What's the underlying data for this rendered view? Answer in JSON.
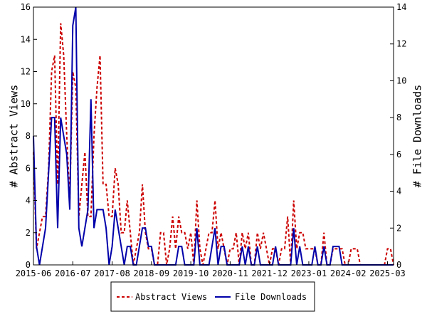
{
  "chart_data": {
    "type": "line",
    "title": "",
    "xlabel": "",
    "ylabel_left": "# Abstract Views",
    "ylabel_right": "# File Downloads",
    "ylim_left": [
      0,
      16
    ],
    "ylim_right": [
      0,
      14
    ],
    "yticks_left": [
      "0",
      "2",
      "4",
      "6",
      "8",
      "10",
      "12",
      "14",
      "16"
    ],
    "yticks_right": [
      "0",
      "2",
      "4",
      "6",
      "8",
      "10",
      "12",
      "14"
    ],
    "x_range": [
      "2015-06",
      "2025-05"
    ],
    "x_tick_labels": [
      "2015-06",
      "2016-07",
      "2017-08",
      "2018-09",
      "2019-10",
      "2020-11",
      "2021-12",
      "2023-01",
      "2024-02",
      "2025-03"
    ],
    "grid": false,
    "legend_position": "bottom-center",
    "series": [
      {
        "name": "Abstract Views",
        "axis": "left",
        "color": "#cc0000",
        "style": "dashed",
        "points": [
          [
            "2015-06",
            7
          ],
          [
            "2015-07",
            1
          ],
          [
            "2015-08",
            2
          ],
          [
            "2015-09",
            3
          ],
          [
            "2015-10",
            3
          ],
          [
            "2015-11",
            6
          ],
          [
            "2015-12",
            12
          ],
          [
            "2016-01",
            13
          ],
          [
            "2016-02",
            5
          ],
          [
            "2016-03",
            15
          ],
          [
            "2016-04",
            13
          ],
          [
            "2016-05",
            8
          ],
          [
            "2016-06",
            4
          ],
          [
            "2016-07",
            12
          ],
          [
            "2016-08",
            11
          ],
          [
            "2016-09",
            3
          ],
          [
            "2016-10",
            5
          ],
          [
            "2016-11",
            7
          ],
          [
            "2016-12",
            3
          ],
          [
            "2017-01",
            3
          ],
          [
            "2017-02",
            8
          ],
          [
            "2017-03",
            11
          ],
          [
            "2017-04",
            13
          ],
          [
            "2017-05",
            5
          ],
          [
            "2017-06",
            5
          ],
          [
            "2017-07",
            3
          ],
          [
            "2017-08",
            3
          ],
          [
            "2017-09",
            6
          ],
          [
            "2017-10",
            5
          ],
          [
            "2017-11",
            2
          ],
          [
            "2017-12",
            2
          ],
          [
            "2018-01",
            4
          ],
          [
            "2018-02",
            2
          ],
          [
            "2018-03",
            0
          ],
          [
            "2018-04",
            1
          ],
          [
            "2018-05",
            2
          ],
          [
            "2018-06",
            5
          ],
          [
            "2018-07",
            2
          ],
          [
            "2018-08",
            1
          ],
          [
            "2018-09",
            1
          ],
          [
            "2018-10",
            0
          ],
          [
            "2018-11",
            0
          ],
          [
            "2018-12",
            2
          ],
          [
            "2019-01",
            2
          ],
          [
            "2019-02",
            0
          ],
          [
            "2019-03",
            1
          ],
          [
            "2019-04",
            3
          ],
          [
            "2019-05",
            1
          ],
          [
            "2019-06",
            3
          ],
          [
            "2019-07",
            2
          ],
          [
            "2019-08",
            2
          ],
          [
            "2019-09",
            1
          ],
          [
            "2019-10",
            2
          ],
          [
            "2019-11",
            0
          ],
          [
            "2019-12",
            4
          ],
          [
            "2020-01",
            1
          ],
          [
            "2020-02",
            0
          ],
          [
            "2020-03",
            1
          ],
          [
            "2020-04",
            2
          ],
          [
            "2020-05",
            2
          ],
          [
            "2020-06",
            4
          ],
          [
            "2020-07",
            1
          ],
          [
            "2020-08",
            2
          ],
          [
            "2020-09",
            1
          ],
          [
            "2020-10",
            0
          ],
          [
            "2020-11",
            1
          ],
          [
            "2020-12",
            1
          ],
          [
            "2021-01",
            2
          ],
          [
            "2021-02",
            0
          ],
          [
            "2021-03",
            2
          ],
          [
            "2021-04",
            1
          ],
          [
            "2021-05",
            2
          ],
          [
            "2021-06",
            0
          ],
          [
            "2021-07",
            0
          ],
          [
            "2021-08",
            2
          ],
          [
            "2021-09",
            1
          ],
          [
            "2021-10",
            2
          ],
          [
            "2021-11",
            1
          ],
          [
            "2021-12",
            0
          ],
          [
            "2022-01",
            1
          ],
          [
            "2022-02",
            1
          ],
          [
            "2022-03",
            0
          ],
          [
            "2022-04",
            1
          ],
          [
            "2022-05",
            1
          ],
          [
            "2022-06",
            3
          ],
          [
            "2022-07",
            0
          ],
          [
            "2022-08",
            4
          ],
          [
            "2022-09",
            1
          ],
          [
            "2022-10",
            2
          ],
          [
            "2022-11",
            2
          ],
          [
            "2022-12",
            1
          ],
          [
            "2023-01",
            1
          ],
          [
            "2023-02",
            1
          ],
          [
            "2023-03",
            1
          ],
          [
            "2023-04",
            0
          ],
          [
            "2023-05",
            0
          ],
          [
            "2023-06",
            2
          ],
          [
            "2023-07",
            0
          ],
          [
            "2023-08",
            0
          ],
          [
            "2023-09",
            1
          ],
          [
            "2023-10",
            1
          ],
          [
            "2023-11",
            1
          ],
          [
            "2023-12",
            1
          ],
          [
            "2024-01",
            0
          ],
          [
            "2024-02",
            0
          ],
          [
            "2024-03",
            1
          ],
          [
            "2024-04",
            1
          ],
          [
            "2024-05",
            1
          ],
          [
            "2024-06",
            0
          ],
          [
            "2024-07",
            0
          ],
          [
            "2024-08",
            0
          ],
          [
            "2024-09",
            0
          ],
          [
            "2024-10",
            0
          ],
          [
            "2024-11",
            0
          ],
          [
            "2024-12",
            0
          ],
          [
            "2025-01",
            0
          ],
          [
            "2025-02",
            0
          ],
          [
            "2025-03",
            1
          ],
          [
            "2025-04",
            1
          ],
          [
            "2025-05",
            0
          ]
        ]
      },
      {
        "name": "File Downloads",
        "axis": "right",
        "color": "#0000aa",
        "style": "solid",
        "points": [
          [
            "2015-06",
            7
          ],
          [
            "2015-07",
            1
          ],
          [
            "2015-08",
            0
          ],
          [
            "2015-09",
            1
          ],
          [
            "2015-10",
            2
          ],
          [
            "2015-11",
            5
          ],
          [
            "2015-12",
            8
          ],
          [
            "2016-01",
            8
          ],
          [
            "2016-02",
            2
          ],
          [
            "2016-03",
            8
          ],
          [
            "2016-04",
            7
          ],
          [
            "2016-05",
            6
          ],
          [
            "2016-06",
            3
          ],
          [
            "2016-07",
            13
          ],
          [
            "2016-08",
            14
          ],
          [
            "2016-09",
            2
          ],
          [
            "2016-10",
            1
          ],
          [
            "2016-11",
            2
          ],
          [
            "2016-12",
            3
          ],
          [
            "2017-01",
            9
          ],
          [
            "2017-02",
            2
          ],
          [
            "2017-03",
            3
          ],
          [
            "2017-04",
            3
          ],
          [
            "2017-05",
            3
          ],
          [
            "2017-06",
            2
          ],
          [
            "2017-07",
            0
          ],
          [
            "2017-08",
            1
          ],
          [
            "2017-09",
            3
          ],
          [
            "2017-10",
            2
          ],
          [
            "2017-11",
            1
          ],
          [
            "2017-12",
            0
          ],
          [
            "2018-01",
            1
          ],
          [
            "2018-02",
            1
          ],
          [
            "2018-03",
            0
          ],
          [
            "2018-04",
            0
          ],
          [
            "2018-05",
            1
          ],
          [
            "2018-06",
            2
          ],
          [
            "2018-07",
            2
          ],
          [
            "2018-08",
            1
          ],
          [
            "2018-09",
            1
          ],
          [
            "2018-10",
            0
          ],
          [
            "2018-11",
            0
          ],
          [
            "2018-12",
            0
          ],
          [
            "2019-01",
            0
          ],
          [
            "2019-02",
            0
          ],
          [
            "2019-03",
            0
          ],
          [
            "2019-04",
            0
          ],
          [
            "2019-05",
            0
          ],
          [
            "2019-06",
            1
          ],
          [
            "2019-07",
            1
          ],
          [
            "2019-08",
            0
          ],
          [
            "2019-09",
            0
          ],
          [
            "2019-10",
            0
          ],
          [
            "2019-11",
            0
          ],
          [
            "2019-12",
            2
          ],
          [
            "2020-01",
            0
          ],
          [
            "2020-02",
            0
          ],
          [
            "2020-03",
            0
          ],
          [
            "2020-04",
            0
          ],
          [
            "2020-05",
            1
          ],
          [
            "2020-06",
            2
          ],
          [
            "2020-07",
            0
          ],
          [
            "2020-08",
            1
          ],
          [
            "2020-09",
            1
          ],
          [
            "2020-10",
            0
          ],
          [
            "2020-11",
            0
          ],
          [
            "2020-12",
            0
          ],
          [
            "2021-01",
            0
          ],
          [
            "2021-02",
            0
          ],
          [
            "2021-03",
            1
          ],
          [
            "2021-04",
            0
          ],
          [
            "2021-05",
            1
          ],
          [
            "2021-06",
            0
          ],
          [
            "2021-07",
            0
          ],
          [
            "2021-08",
            1
          ],
          [
            "2021-09",
            0
          ],
          [
            "2021-10",
            0
          ],
          [
            "2021-11",
            0
          ],
          [
            "2021-12",
            0
          ],
          [
            "2022-01",
            0
          ],
          [
            "2022-02",
            1
          ],
          [
            "2022-03",
            0
          ],
          [
            "2022-04",
            0
          ],
          [
            "2022-05",
            0
          ],
          [
            "2022-06",
            0
          ],
          [
            "2022-07",
            0
          ],
          [
            "2022-08",
            2
          ],
          [
            "2022-09",
            0
          ],
          [
            "2022-10",
            1
          ],
          [
            "2022-11",
            0
          ],
          [
            "2022-12",
            0
          ],
          [
            "2023-01",
            0
          ],
          [
            "2023-02",
            0
          ],
          [
            "2023-03",
            1
          ],
          [
            "2023-04",
            0
          ],
          [
            "2023-05",
            0
          ],
          [
            "2023-06",
            1
          ],
          [
            "2023-07",
            0
          ],
          [
            "2023-08",
            0
          ],
          [
            "2023-09",
            1
          ],
          [
            "2023-10",
            1
          ],
          [
            "2023-11",
            1
          ],
          [
            "2023-12",
            0
          ],
          [
            "2024-01",
            0
          ],
          [
            "2024-02",
            0
          ],
          [
            "2024-03",
            0
          ],
          [
            "2024-04",
            0
          ],
          [
            "2024-05",
            0
          ],
          [
            "2024-06",
            0
          ],
          [
            "2024-07",
            0
          ],
          [
            "2024-08",
            0
          ],
          [
            "2024-09",
            0
          ],
          [
            "2024-10",
            0
          ],
          [
            "2024-11",
            0
          ],
          [
            "2024-12",
            0
          ],
          [
            "2025-01",
            0
          ],
          [
            "2025-02",
            0
          ],
          [
            "2025-03",
            0
          ],
          [
            "2025-04",
            0
          ],
          [
            "2025-05",
            0
          ]
        ]
      }
    ]
  }
}
